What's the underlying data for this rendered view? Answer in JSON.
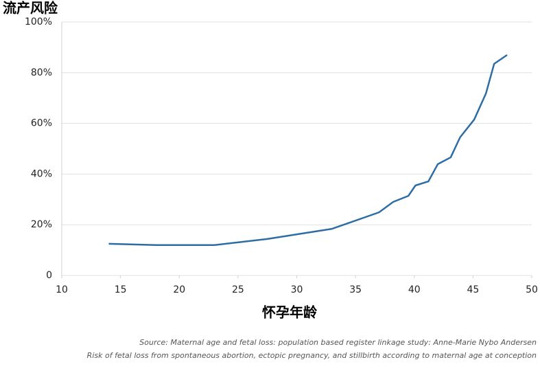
{
  "chart_data": {
    "type": "line",
    "y_label": "流产风险",
    "x_label": "怀孕年龄",
    "notes": [
      "Source: Maternal age and fetal loss: population based register linkage study: Anne-Marie Nybo Andersen",
      "Risk of fetal loss from spontaneous abortion, ectopic pregnancy, and stillbirth according to maternal age at conception"
    ],
    "x": [
      14,
      18,
      23,
      27.5,
      33,
      37,
      38.2,
      39.5,
      40.1,
      41.2,
      42,
      43.1,
      43.9,
      45.1,
      46.1,
      46.8,
      47.9
    ],
    "values": [
      12.5,
      12,
      12,
      14.4,
      18.4,
      24.9,
      29,
      31.4,
      35.5,
      37.1,
      43.9,
      46.6,
      54.5,
      61.5,
      71.8,
      83.5,
      87
    ],
    "color": "#2e6da4",
    "xlim": [
      10,
      50
    ],
    "xticks": [
      10,
      15,
      20,
      25,
      30,
      35,
      40,
      45,
      50
    ],
    "ylim": [
      0,
      100
    ],
    "yticks": [
      0,
      {
        "value": 20,
        "label": "20%"
      },
      {
        "value": 40,
        "label": "40%"
      },
      {
        "value": 60,
        "label": "60%"
      },
      {
        "value": 80,
        "label": "80%"
      },
      {
        "value": 100,
        "label": "100%"
      }
    ],
    "grid": true
  }
}
